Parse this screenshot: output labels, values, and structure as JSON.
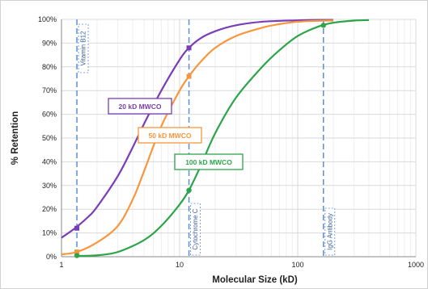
{
  "chart_data": {
    "type": "line",
    "xscale": "log",
    "xlim": [
      1,
      1000
    ],
    "ylim": [
      0,
      100
    ],
    "xticks": [
      1,
      10,
      100,
      1000
    ],
    "xtick_labels": [
      "1",
      "10",
      "100",
      "1000"
    ],
    "yticks": [
      0,
      10,
      20,
      30,
      40,
      50,
      60,
      70,
      80,
      90,
      100
    ],
    "ytick_labels": [
      "0%",
      "10%",
      "20%",
      "30%",
      "40%",
      "50%",
      "60%",
      "70%",
      "80%",
      "90%",
      "100%"
    ],
    "xlabel": "Molecular Size (kD)",
    "ylabel": "% Retention",
    "grid": true,
    "series": [
      {
        "name": "20 kD MWCO",
        "color": "#7a3db8",
        "x": [
          1,
          1.3,
          1.7,
          2,
          3,
          4,
          5,
          7,
          10,
          12,
          15,
          20,
          30,
          50,
          100,
          150,
          200
        ],
        "y": [
          8,
          12,
          17,
          21,
          34,
          46,
          56,
          70,
          83,
          88,
          92,
          95,
          97.5,
          99,
          99.6,
          99.8,
          99.8
        ],
        "markers": [
          {
            "x": 1.35,
            "y": 12
          },
          {
            "x": 12,
            "y": 88
          }
        ]
      },
      {
        "name": "50 kD MWCO",
        "color": "#f7963c",
        "x": [
          1,
          1.35,
          2,
          3,
          4,
          5,
          7,
          10,
          12,
          15,
          20,
          30,
          50,
          70,
          100,
          150,
          200
        ],
        "y": [
          1,
          2,
          6,
          13,
          24,
          36,
          55,
          70,
          76,
          82,
          88,
          93,
          96.5,
          98,
          99,
          99.4,
          99.5
        ],
        "markers": [
          {
            "x": 1.35,
            "y": 2
          },
          {
            "x": 12,
            "y": 76
          }
        ]
      },
      {
        "name": "100 kD MWCO",
        "color": "#2ca54a",
        "x": [
          1.3,
          2,
          3,
          5,
          7,
          10,
          12,
          15,
          20,
          30,
          50,
          70,
          100,
          150,
          200,
          300,
          400
        ],
        "y": [
          0.3,
          0.6,
          2,
          7,
          13,
          22,
          28,
          38,
          52,
          67,
          80,
          87,
          93,
          97,
          98.6,
          99.5,
          99.7
        ],
        "markers": [
          {
            "x": 1.35,
            "y": 0.5
          },
          {
            "x": 12,
            "y": 28
          },
          {
            "x": 165,
            "y": 97.5
          }
        ]
      }
    ],
    "reference_lines": [
      {
        "x": 1.35,
        "label": "Vitamin B12"
      },
      {
        "x": 12,
        "label": "Cytochrome C"
      },
      {
        "x": 165,
        "label": "IgG Antibody"
      }
    ]
  }
}
